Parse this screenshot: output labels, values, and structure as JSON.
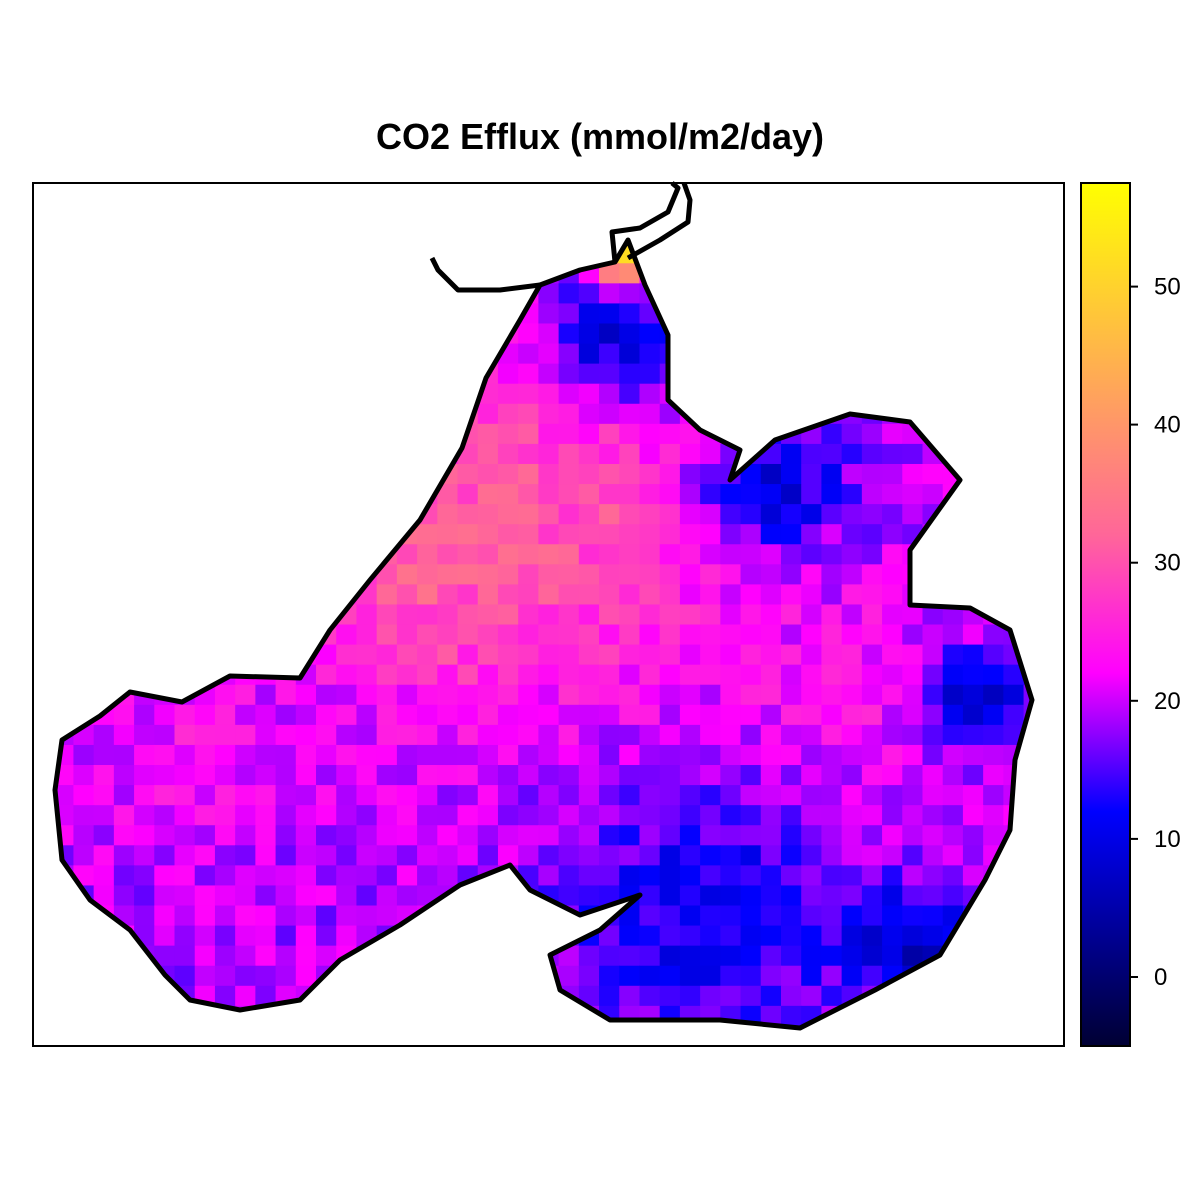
{
  "chart_data": {
    "type": "heatmap",
    "title": "CO2 Efflux (mmol/m2/day)",
    "colorbar": {
      "range": [
        -5,
        57.5
      ],
      "ticks": [
        0,
        10,
        20,
        30,
        40,
        50
      ],
      "colors": [
        "#000033",
        "#0000ff",
        "#ff00ff",
        "#ff6699",
        "#ffff00"
      ],
      "color_stops": [
        -5,
        12,
        22,
        32,
        57.5
      ],
      "placement": "right"
    },
    "grid": {
      "nx": 51,
      "ny": 43,
      "base_value": 19,
      "hotspots": [
        {
          "cx": 0.5,
          "cy": 0.38,
          "r": 0.22,
          "v": 30
        },
        {
          "cx": 0.38,
          "cy": 0.45,
          "r": 0.12,
          "v": 31
        },
        {
          "cx": 0.15,
          "cy": 0.65,
          "r": 0.12,
          "v": 23
        },
        {
          "cx": 0.8,
          "cy": 0.6,
          "r": 0.12,
          "v": 24
        },
        {
          "cx": 0.57,
          "cy": 0.18,
          "r": 0.08,
          "v": 10
        },
        {
          "cx": 0.72,
          "cy": 0.35,
          "r": 0.08,
          "v": 10
        },
        {
          "cx": 0.65,
          "cy": 0.85,
          "r": 0.14,
          "v": 11
        },
        {
          "cx": 0.92,
          "cy": 0.6,
          "r": 0.06,
          "v": 8
        },
        {
          "cx": 0.85,
          "cy": 0.88,
          "r": 0.06,
          "v": 7
        },
        {
          "cx": 0.57,
          "cy": 0.08,
          "r": 0.03,
          "v": 55
        },
        {
          "cx": 0.6,
          "cy": 0.05,
          "r": 0.025,
          "v": 38
        }
      ]
    }
  }
}
